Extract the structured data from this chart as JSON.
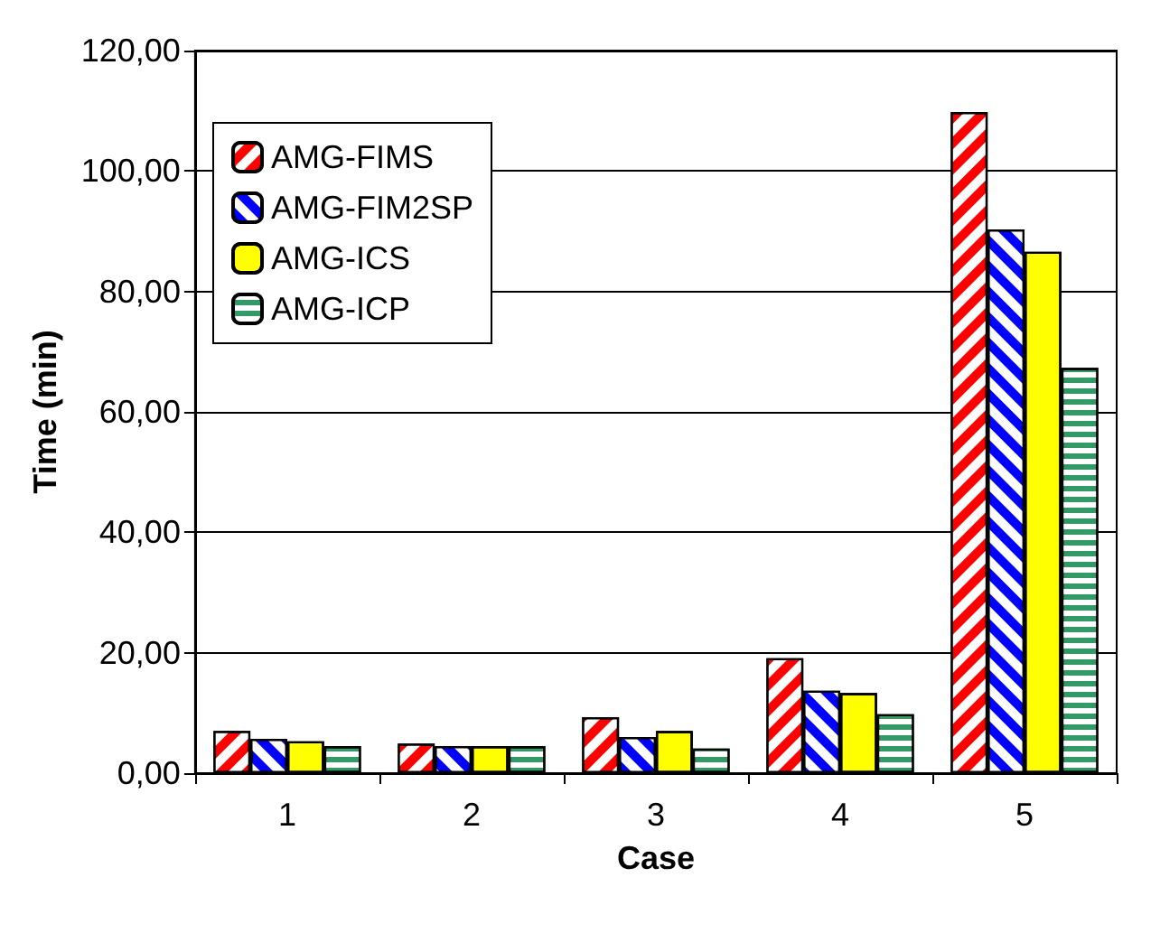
{
  "chart_data": {
    "type": "bar",
    "xlabel": "Case",
    "ylabel": "Time (min)",
    "categories": [
      "1",
      "2",
      "3",
      "4",
      "5"
    ],
    "series": [
      {
        "name": "AMG-FIMS",
        "color": "#ff0000",
        "values": [
          7.0,
          4.9,
          9.3,
          19.1,
          109.8
        ]
      },
      {
        "name": "AMG-FIM2SP",
        "color": "#0000ff",
        "values": [
          5.7,
          4.5,
          6.0,
          13.7,
          90.3
        ]
      },
      {
        "name": "AMG-ICS",
        "color": "#ffff00",
        "values": [
          5.3,
          4.5,
          7.0,
          13.3,
          86.6
        ]
      },
      {
        "name": "AMG-ICP",
        "color": "#339966",
        "values": [
          4.5,
          4.5,
          4.1,
          9.8,
          67.3
        ]
      }
    ],
    "ylim": [
      0,
      120
    ],
    "yticks": [
      {
        "value": 0,
        "label": "0,00"
      },
      {
        "value": 20,
        "label": "20,00"
      },
      {
        "value": 40,
        "label": "40,00"
      },
      {
        "value": 60,
        "label": "60,00"
      },
      {
        "value": 80,
        "label": "80,00"
      },
      {
        "value": 100,
        "label": "100,00"
      },
      {
        "value": 120,
        "label": "120,00"
      }
    ],
    "grid": "y",
    "legend": "top left"
  }
}
